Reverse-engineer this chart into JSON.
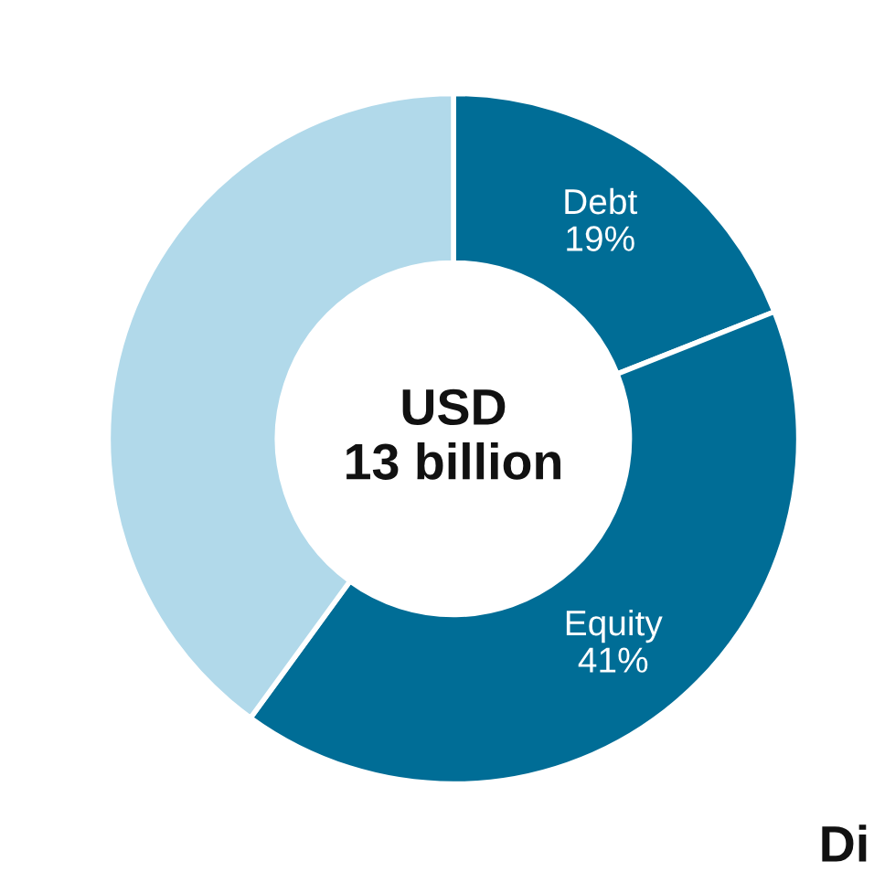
{
  "chart_data": {
    "type": "donut",
    "title": "USD\n13 billion",
    "categories": [
      "Debt",
      "Equity",
      null
    ],
    "values": [
      19,
      41,
      40
    ],
    "colors": [
      "#006d96",
      "#006d96",
      "#b1d9ea"
    ],
    "value_labels": [
      "19%",
      "41%",
      null
    ],
    "annotations": [
      "Di"
    ],
    "legend": false
  }
}
